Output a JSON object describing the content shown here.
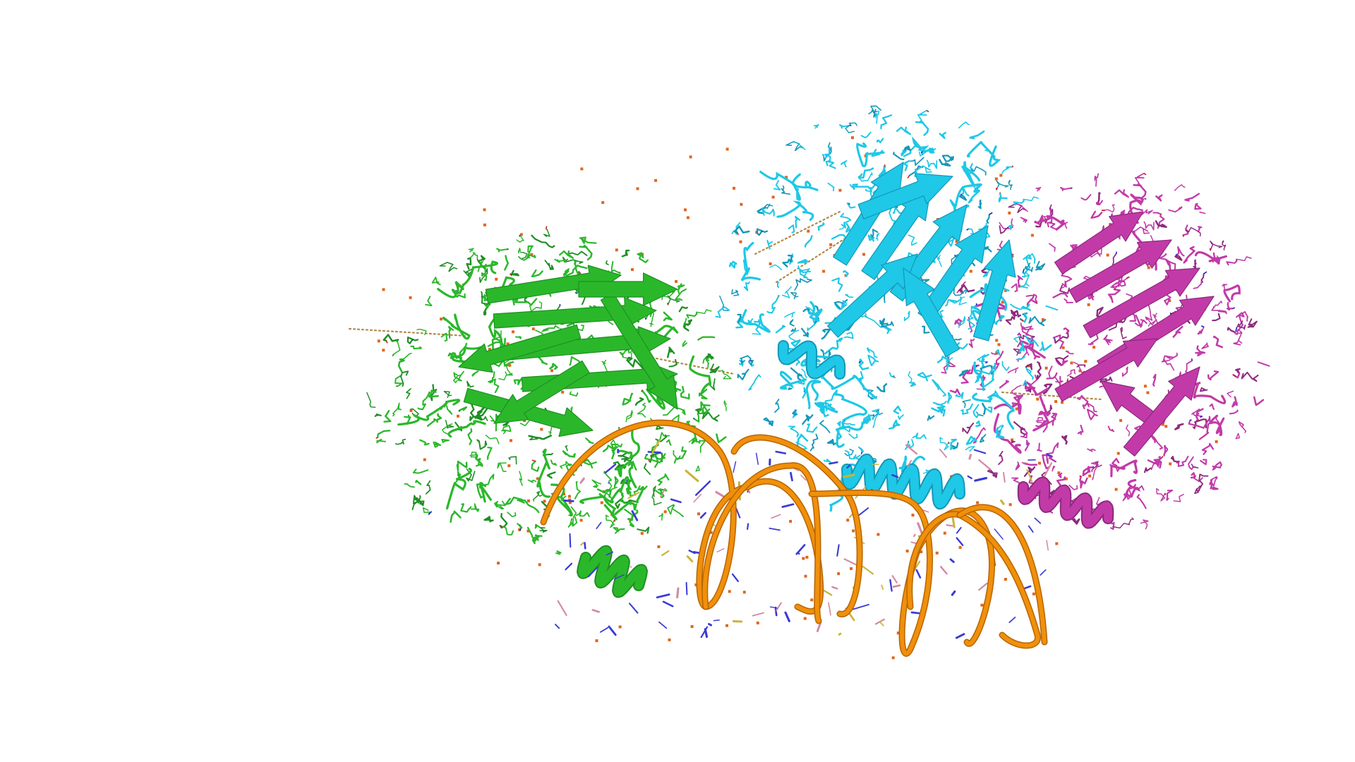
{
  "scene": {
    "background": "#ffffff",
    "palette": {
      "chain_green": "#2ab82a",
      "chain_green_dark": "#1f8f24",
      "chain_cyan": "#1ec8e6",
      "chain_cyan_dark": "#1597b8",
      "chain_magenta": "#c23aa8",
      "chain_magenta_dark": "#8d2a7e",
      "dna_backbone": "#f0900a",
      "dna_backbone_dark": "#b86400",
      "dna_base_blue": "#3a3ad6",
      "dna_base_yellow": "#c9b43a",
      "dna_base_pink": "#d48aa0",
      "water": "#e0661f",
      "contact_dots": "#b08a4a"
    },
    "components": [
      {
        "name": "protein-chain-green",
        "icon": "beta-sandwich-ribbon"
      },
      {
        "name": "protein-chain-cyan",
        "icon": "beta-sandwich-ribbon"
      },
      {
        "name": "protein-chain-magenta",
        "icon": "beta-sandwich-ribbon"
      },
      {
        "name": "dna-duplex",
        "icon": "double-helix"
      },
      {
        "name": "water-molecules",
        "icon": "dot-cloud"
      }
    ]
  }
}
